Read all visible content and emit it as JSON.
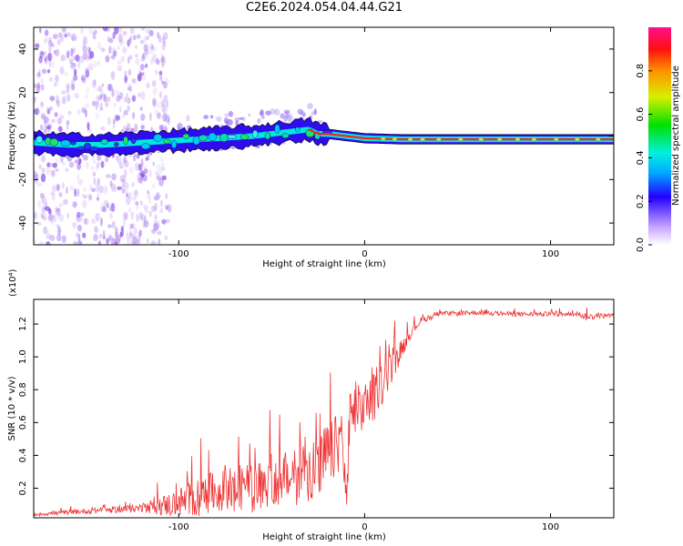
{
  "title": "C2E6.2024.054.04.44.G21",
  "chart_data": [
    {
      "type": "heatmap",
      "xlabel": "Height of straight line (km)",
      "ylabel": "Frequency (Hz)",
      "xlim": [
        -178,
        134
      ],
      "ylim": [
        -50,
        50
      ],
      "xticks": [
        -100,
        0,
        100
      ],
      "yticks": [
        -40,
        -20,
        0,
        20,
        40
      ],
      "ridge": {
        "x": [
          -178,
          -160,
          -140,
          -120,
          -100,
          -80,
          -60,
          -40,
          -30,
          -25,
          -20,
          -10,
          0,
          20,
          60,
          100,
          134
        ],
        "freq": [
          -3,
          -4,
          -4,
          -3,
          -2,
          -1,
          0,
          2,
          3,
          1,
          1,
          0,
          -1,
          -1.5,
          -1.5,
          -1.5,
          -1.5
        ]
      },
      "colorbar": {
        "label": "Normalized spectral amplitude",
        "ticks": [
          "0.0",
          "0.2",
          "0.4",
          "0.6",
          "0.8"
        ],
        "range": [
          0,
          1
        ]
      }
    },
    {
      "type": "line",
      "xlabel": "Height of straight line (km)",
      "ylabel": "SNR (10 * v/v)",
      "scale_note": "(x10⁴)",
      "xlim": [
        -178,
        134
      ],
      "ylim": [
        0.02,
        1.35
      ],
      "xticks": [
        -100,
        0,
        100
      ],
      "yticks": [
        0.2,
        0.4,
        0.6,
        0.8,
        1.0,
        1.2
      ],
      "ytick_labels": [
        "0.2",
        "0.4",
        "0.6",
        "0.8",
        "1.0",
        "1.2"
      ],
      "color": "#ee3333",
      "envelope": {
        "x": [
          -178,
          -150,
          -120,
          -105,
          -90,
          -80,
          -70,
          -60,
          -50,
          -40,
          -35,
          -30,
          -25,
          -20,
          -15,
          -12,
          -10,
          -8,
          -5,
          0,
          5,
          10,
          15,
          20,
          25,
          30,
          40,
          60,
          80,
          100,
          115,
          120,
          125,
          134
        ],
        "base": [
          0.04,
          0.06,
          0.08,
          0.1,
          0.14,
          0.18,
          0.18,
          0.2,
          0.24,
          0.26,
          0.3,
          0.32,
          0.3,
          0.4,
          0.45,
          0.55,
          0.1,
          0.6,
          0.65,
          0.7,
          0.75,
          0.85,
          0.95,
          1.05,
          1.15,
          1.22,
          1.26,
          1.27,
          1.26,
          1.26,
          1.26,
          1.24,
          1.25,
          1.25
        ],
        "noise": [
          0.02,
          0.03,
          0.05,
          0.15,
          0.25,
          0.25,
          0.28,
          0.3,
          0.3,
          0.35,
          0.4,
          0.4,
          0.4,
          0.45,
          0.4,
          0.4,
          0.3,
          0.4,
          0.35,
          0.3,
          0.3,
          0.25,
          0.2,
          0.12,
          0.06,
          0.04,
          0.03,
          0.03,
          0.03,
          0.03,
          0.03,
          0.05,
          0.03,
          0.03
        ]
      }
    }
  ]
}
